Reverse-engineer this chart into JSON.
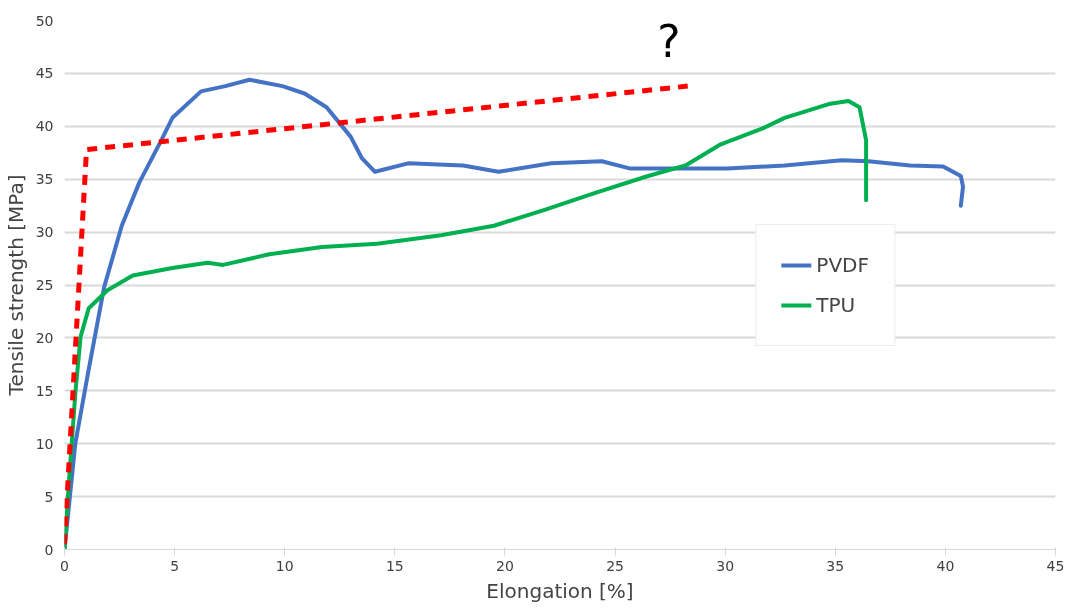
{
  "chart_data": {
    "type": "line",
    "xlabel": "Elongation [%]",
    "ylabel": "Tensile strength [MPa]",
    "xlim": [
      0,
      45
    ],
    "ylim": [
      0,
      50
    ],
    "xticks": [
      0,
      5,
      10,
      15,
      20,
      25,
      30,
      35,
      40,
      45
    ],
    "yticks": [
      0,
      5,
      10,
      15,
      20,
      25,
      30,
      35,
      40,
      45,
      50
    ],
    "grid": "y",
    "legend": "right",
    "marker": "none",
    "annotations": [
      "?"
    ],
    "series": [
      {
        "name": "PVDF",
        "color": "#4472c4",
        "line_style": "solid",
        "x": [
          0,
          0.49,
          1.07,
          1.8,
          2.6,
          3.4,
          4.4,
          4.9,
          6.2,
          7.3,
          8.4,
          9.9,
          10.9,
          11.9,
          13.0,
          13.5,
          14.1,
          15.6,
          18.1,
          19.7,
          22.1,
          24.4,
          25.7,
          28.2,
          30.1,
          32.7,
          35.3,
          36.5,
          38.4,
          39.9,
          40.7,
          40.8,
          40.7
        ],
        "values": [
          0,
          10,
          16.7,
          24.8,
          30.6,
          34.7,
          38.7,
          40.8,
          43.3,
          43.8,
          44.4,
          43.8,
          43.1,
          41.8,
          39.0,
          37.0,
          35.7,
          36.5,
          36.3,
          35.7,
          36.5,
          36.7,
          36.0,
          36.0,
          36.0,
          36.3,
          36.8,
          36.7,
          36.3,
          36.2,
          35.3,
          34.3,
          32.5
        ]
      },
      {
        "name": "TPU",
        "color": "#00b050",
        "line_style": "solid",
        "x": [
          0,
          0.15,
          0.5,
          0.73,
          1.1,
          1.95,
          3.1,
          4.9,
          6.5,
          7.2,
          9.3,
          11.7,
          14.2,
          17.1,
          19.5,
          21.8,
          24.1,
          26.5,
          28.2,
          29.8,
          31.7,
          32.7,
          34.7,
          35.6,
          36.1,
          36.4,
          36.4
        ],
        "values": [
          0,
          4.9,
          15,
          20.1,
          22.8,
          24.5,
          25.9,
          26.6,
          27.1,
          26.9,
          27.9,
          28.6,
          28.9,
          29.7,
          30.6,
          32.1,
          33.7,
          35.3,
          36.3,
          38.3,
          39.8,
          40.8,
          42.1,
          42.4,
          41.8,
          38.7,
          33
        ]
      },
      {
        "color": "#ff0000",
        "line_style": "dashed",
        "x": [
          0,
          1.0,
          28.3
        ],
        "values": [
          0.5,
          37.8,
          43.8
        ]
      }
    ]
  }
}
